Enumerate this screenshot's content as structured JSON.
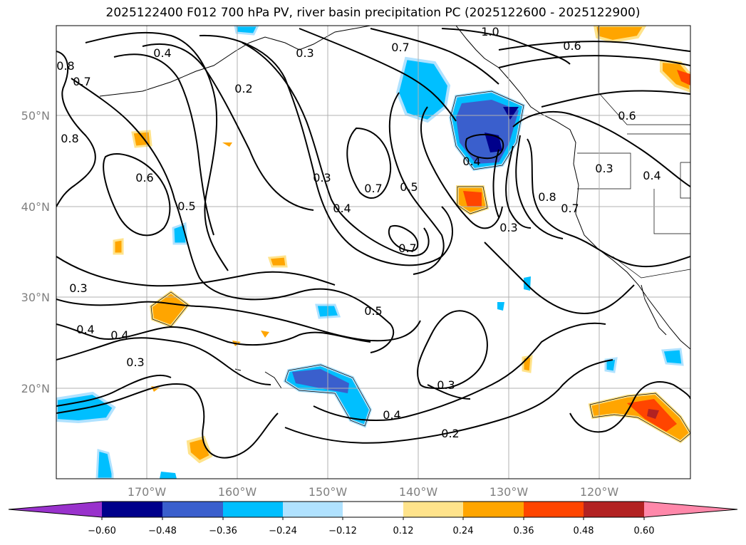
{
  "title": "2025122400 F012 700 hPa PV, river basin precipitation PC (2025122600 - 2025122900)",
  "axes": {
    "lat_labels": [
      "50°N",
      "40°N",
      "30°N",
      "20°N"
    ],
    "lon_labels": [
      "170°W",
      "160°W",
      "150°W",
      "140°W",
      "130°W",
      "120°W"
    ]
  },
  "colorbar": {
    "tick_labels": [
      "−0.60",
      "−0.48",
      "−0.36",
      "−0.24",
      "−0.12",
      "0.12",
      "0.24",
      "0.36",
      "0.48",
      "0.60"
    ],
    "colors": [
      "#9932cc",
      "#00008b",
      "#3a5fcd",
      "#00bfff",
      "#b0e2ff",
      "#ffffff",
      "#ffe38b",
      "#ffa500",
      "#ff4500",
      "#b22222",
      "#ff88aa"
    ],
    "extend": "both"
  },
  "contour_labels": {
    "l1": "1.0",
    "l2": "0.3",
    "l3": "0.4",
    "l4": "0.7",
    "l5": "0.6",
    "l6": "0.8",
    "l7": "0.7",
    "l8": "0.2",
    "l9": "0.8",
    "l10": "0.6",
    "l11": "0.5",
    "l12": "0.3",
    "l13": "0.4",
    "l14": "0.7",
    "l15": "0.5",
    "l16": "0.4",
    "l17": "0.6",
    "l18": "0.3",
    "l19": "0.4",
    "l20": "0.8",
    "l21": "0.7",
    "l22": "0.3",
    "l23": "0.7",
    "l24": "0.3",
    "l25": "0.4",
    "l26": "0.4",
    "l27": "0.3",
    "l28": "0.5",
    "l29": "0.3",
    "l30": "0.4",
    "l31": "0.2"
  }
}
